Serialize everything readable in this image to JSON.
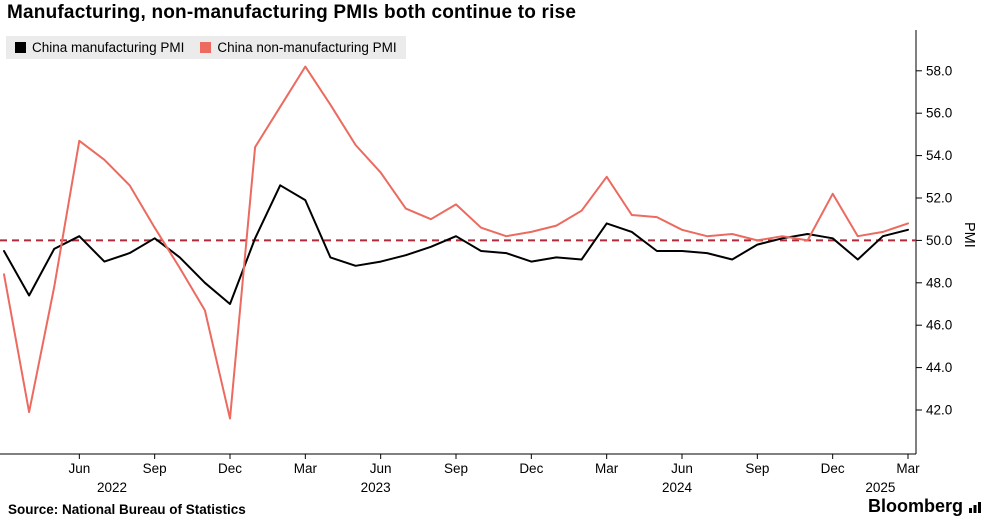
{
  "title": "Manufacturing, non-manufacturing PMIs both continue to rise",
  "legend": [
    {
      "label": "China manufacturing PMI",
      "color": "#000000"
    },
    {
      "label": "China non-manufacturing PMI",
      "color": "#ec6a5f"
    }
  ],
  "axis": {
    "y_title": "PMI"
  },
  "source": "Source: National Bureau of Statistics",
  "brand": "Bloomberg",
  "chart_data": {
    "type": "line",
    "title": "Manufacturing, non-manufacturing PMIs both continue to rise",
    "ylabel": "PMI",
    "ylim": [
      39.9,
      59.9
    ],
    "grid": false,
    "legend_position": "top-left",
    "x": [
      "Mar 2022",
      "Apr 2022",
      "May 2022",
      "Jun 2022",
      "Jul 2022",
      "Aug 2022",
      "Sep 2022",
      "Oct 2022",
      "Nov 2022",
      "Dec 2022",
      "Jan 2023",
      "Feb 2023",
      "Mar 2023",
      "Apr 2023",
      "May 2023",
      "Jun 2023",
      "Jul 2023",
      "Aug 2023",
      "Sep 2023",
      "Oct 2023",
      "Nov 2023",
      "Dec 2023",
      "Jan 2024",
      "Feb 2024",
      "Mar 2024",
      "Apr 2024",
      "May 2024",
      "Jun 2024",
      "Jul 2024",
      "Aug 2024",
      "Sep 2024",
      "Oct 2024",
      "Nov 2024",
      "Dec 2024",
      "Jan 2025",
      "Feb 2025",
      "Mar 2025"
    ],
    "series": [
      {
        "name": "China manufacturing PMI",
        "color": "#000000",
        "values": [
          49.5,
          47.4,
          49.6,
          50.2,
          49.0,
          49.4,
          50.1,
          49.2,
          48.0,
          47.0,
          50.1,
          52.6,
          51.9,
          49.2,
          48.8,
          49.0,
          49.3,
          49.7,
          50.2,
          49.5,
          49.4,
          49.0,
          49.2,
          49.1,
          50.8,
          50.4,
          49.5,
          49.5,
          49.4,
          49.1,
          49.8,
          50.1,
          50.3,
          50.1,
          49.1,
          50.2,
          50.5
        ]
      },
      {
        "name": "China non-manufacturing PMI",
        "color": "#ec6a5f",
        "values": [
          48.4,
          41.9,
          47.8,
          54.7,
          53.8,
          52.6,
          50.6,
          48.7,
          46.7,
          41.6,
          54.4,
          56.3,
          58.2,
          56.4,
          54.5,
          53.2,
          51.5,
          51.0,
          51.7,
          50.6,
          50.2,
          50.4,
          50.7,
          51.4,
          53.0,
          51.2,
          51.1,
          50.5,
          50.2,
          50.3,
          50.0,
          50.2,
          50.0,
          52.2,
          50.2,
          50.4,
          50.8
        ]
      }
    ],
    "reference_line": {
      "value": 50.0,
      "style": "dashed",
      "color": "#b02a3a"
    },
    "y_ticks": [
      "42.0",
      "44.0",
      "46.0",
      "48.0",
      "50.0",
      "52.0",
      "54.0",
      "56.0",
      "58.0"
    ],
    "x_ticks": [
      {
        "i": 3,
        "label": "Jun"
      },
      {
        "i": 6,
        "label": "Sep"
      },
      {
        "i": 9,
        "label": "Dec"
      },
      {
        "i": 12,
        "label": "Mar"
      },
      {
        "i": 15,
        "label": "Jun"
      },
      {
        "i": 18,
        "label": "Sep"
      },
      {
        "i": 21,
        "label": "Dec"
      },
      {
        "i": 24,
        "label": "Mar"
      },
      {
        "i": 27,
        "label": "Jun"
      },
      {
        "i": 30,
        "label": "Sep"
      },
      {
        "i": 33,
        "label": "Dec"
      },
      {
        "i": 36,
        "label": "Mar"
      }
    ],
    "year_ticks": [
      {
        "i": 4.3,
        "label": "2022"
      },
      {
        "i": 14.8,
        "label": "2023"
      },
      {
        "i": 26.8,
        "label": "2024"
      },
      {
        "i": 34.9,
        "label": "2025"
      }
    ]
  }
}
